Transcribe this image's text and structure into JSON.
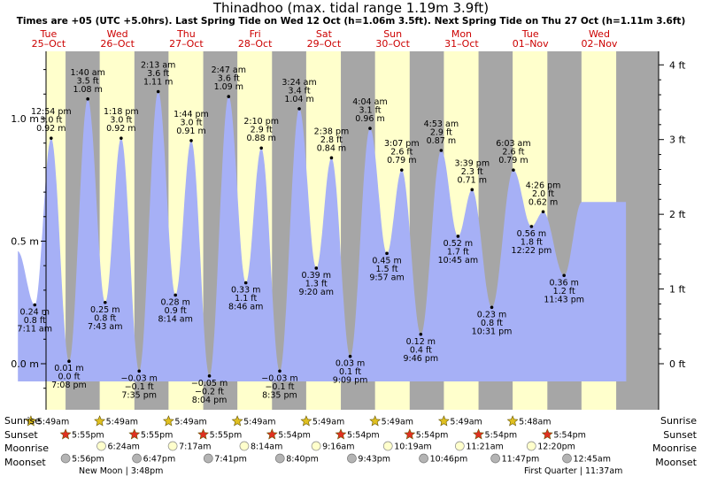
{
  "title": "Thinadhoo (max. tidal range 1.19m 3.9ft)",
  "subtitle": "Times are +05 (UTC +5.0hrs). Last Spring Tide on Wed 12 Oct (h=1.06m 3.5ft). Next Spring Tide on Thu 27 Oct (h=1.11m 3.6ft)",
  "colors": {
    "night": "#a6a6a6",
    "day": "#ffffcc",
    "tide_fill": "#a6b0f6",
    "day_label": "#cc0000",
    "sunrise_star": "#e0c020",
    "sunset_star": "#e03020",
    "moon": "#ffffcc",
    "moonset": "#b4b4b4"
  },
  "row_labels": {
    "sunrise": "Sunrise",
    "sunset": "Sunset",
    "moonrise": "Moonrise",
    "moonset": "Moonset"
  },
  "moon_phases": [
    {
      "label": "New Moon | 3:48pm",
      "day_index": 0
    },
    {
      "label": "First Quarter | 11:37am",
      "day_index": 7
    }
  ],
  "chart_data": {
    "type": "area",
    "title": "Thinadhoo (max. tidal range 1.19m 3.9ft)",
    "start_day_hour": 0,
    "y_left": {
      "label": "m",
      "range": [
        -0.18,
        1.26
      ],
      "ticks": [
        {
          "value": 0.0,
          "label": "0.0 m"
        },
        {
          "value": 0.5,
          "label": "0.5 m"
        },
        {
          "value": 1.0,
          "label": "1.0 m"
        }
      ]
    },
    "y_right": {
      "label": "ft",
      "ticks": [
        {
          "value": 0,
          "label": "0 ft"
        },
        {
          "value": 1,
          "label": "1 ft"
        },
        {
          "value": 2,
          "label": "2 ft"
        },
        {
          "value": 3,
          "label": "3 ft"
        },
        {
          "value": 4,
          "label": "4 ft"
        }
      ]
    },
    "days": [
      {
        "dow": "Tue",
        "date": "25–Oct"
      },
      {
        "dow": "Wed",
        "date": "26–Oct"
      },
      {
        "dow": "Thu",
        "date": "27–Oct"
      },
      {
        "dow": "Fri",
        "date": "28–Oct"
      },
      {
        "dow": "Sat",
        "date": "29–Oct"
      },
      {
        "dow": "Sun",
        "date": "30–Oct"
      },
      {
        "dow": "Mon",
        "date": "31–Oct"
      },
      {
        "dow": "Tue",
        "date": "01–Nov"
      },
      {
        "dow": "Wed",
        "date": "02–Nov"
      }
    ],
    "tides": [
      {
        "t": 7.18,
        "time": "7:11 am",
        "m": "0.24 m",
        "ft": "0.8 ft",
        "h": 0.24,
        "type": "low"
      },
      {
        "t": 12.9,
        "time": "12:54 pm",
        "m": "0.92 m",
        "ft": "3.0 ft",
        "h": 0.92,
        "type": "high"
      },
      {
        "t": 19.13,
        "time": "7:08 pm",
        "m": "0.01 m",
        "ft": "0.0 ft",
        "h": 0.01,
        "type": "low"
      },
      {
        "t": 25.67,
        "time": "1:40 am",
        "m": "1.08 m",
        "ft": "3.5 ft",
        "h": 1.08,
        "type": "high"
      },
      {
        "t": 31.72,
        "time": "7:43 am",
        "m": "0.25 m",
        "ft": "0.8 ft",
        "h": 0.25,
        "type": "low"
      },
      {
        "t": 37.3,
        "time": "1:18 pm",
        "m": "0.92 m",
        "ft": "3.0 ft",
        "h": 0.92,
        "type": "high"
      },
      {
        "t": 43.58,
        "time": "7:35 pm",
        "m": "−0.03 m",
        "ft": "−0.1 ft",
        "h": -0.03,
        "type": "low"
      },
      {
        "t": 50.22,
        "time": "2:13 am",
        "m": "1.11 m",
        "ft": "3.6 ft",
        "h": 1.11,
        "type": "high"
      },
      {
        "t": 56.23,
        "time": "8:14 am",
        "m": "0.28 m",
        "ft": "0.9 ft",
        "h": 0.28,
        "type": "low"
      },
      {
        "t": 61.73,
        "time": "1:44 pm",
        "m": "0.91 m",
        "ft": "3.0 ft",
        "h": 0.91,
        "type": "high"
      },
      {
        "t": 68.07,
        "time": "8:04 pm",
        "m": "−0.05 m",
        "ft": "−0.2 ft",
        "h": -0.05,
        "type": "low"
      },
      {
        "t": 74.78,
        "time": "2:47 am",
        "m": "1.09 m",
        "ft": "3.6 ft",
        "h": 1.09,
        "type": "high"
      },
      {
        "t": 80.77,
        "time": "8:46 am",
        "m": "0.33 m",
        "ft": "1.1 ft",
        "h": 0.33,
        "type": "low"
      },
      {
        "t": 86.17,
        "time": "2:10 pm",
        "m": "0.88 m",
        "ft": "2.9 ft",
        "h": 0.88,
        "type": "high"
      },
      {
        "t": 92.58,
        "time": "8:35 pm",
        "m": "−0.03 m",
        "ft": "−0.1 ft",
        "h": -0.03,
        "type": "low"
      },
      {
        "t": 99.4,
        "time": "3:24 am",
        "m": "1.04 m",
        "ft": "3.4 ft",
        "h": 1.04,
        "type": "high"
      },
      {
        "t": 105.33,
        "time": "9:20 am",
        "m": "0.39 m",
        "ft": "1.3 ft",
        "h": 0.39,
        "type": "low"
      },
      {
        "t": 110.63,
        "time": "2:38 pm",
        "m": "0.84 m",
        "ft": "2.8 ft",
        "h": 0.84,
        "type": "high"
      },
      {
        "t": 117.15,
        "time": "9:09 pm",
        "m": "0.03 m",
        "ft": "0.1 ft",
        "h": 0.03,
        "type": "low"
      },
      {
        "t": 124.07,
        "time": "4:04 am",
        "m": "0.96 m",
        "ft": "3.1 ft",
        "h": 0.96,
        "type": "high"
      },
      {
        "t": 129.95,
        "time": "9:57 am",
        "m": "0.45 m",
        "ft": "1.5 ft",
        "h": 0.45,
        "type": "low"
      },
      {
        "t": 135.12,
        "time": "3:07 pm",
        "m": "0.79 m",
        "ft": "2.6 ft",
        "h": 0.79,
        "type": "high"
      },
      {
        "t": 141.77,
        "time": "9:46 pm",
        "m": "0.12 m",
        "ft": "0.4 ft",
        "h": 0.12,
        "type": "low"
      },
      {
        "t": 148.88,
        "time": "4:53 am",
        "m": "0.87 m",
        "ft": "2.9 ft",
        "h": 0.87,
        "type": "high"
      },
      {
        "t": 154.75,
        "time": "10:45 am",
        "m": "0.52 m",
        "ft": "1.7 ft",
        "h": 0.52,
        "type": "low"
      },
      {
        "t": 159.65,
        "time": "3:39 pm",
        "m": "0.71 m",
        "ft": "2.3 ft",
        "h": 0.71,
        "type": "high"
      },
      {
        "t": 166.52,
        "time": "10:31 pm",
        "m": "0.23 m",
        "ft": "0.8 ft",
        "h": 0.23,
        "type": "low"
      },
      {
        "t": 174.05,
        "time": "6:03 am",
        "m": "0.79 m",
        "ft": "2.6 ft",
        "h": 0.79,
        "type": "high"
      },
      {
        "t": 180.37,
        "time": "12:22 pm",
        "m": "0.56 m",
        "ft": "1.8 ft",
        "h": 0.56,
        "type": "low"
      },
      {
        "t": 184.43,
        "time": "4:26 pm",
        "m": "0.62 m",
        "ft": "2.0 ft",
        "h": 0.62,
        "type": "high"
      },
      {
        "t": 191.72,
        "time": "11:43 pm",
        "m": "0.36 m",
        "ft": "1.2 ft",
        "h": 0.36,
        "type": "low"
      }
    ],
    "sunrise": [
      {
        "t": 5.82,
        "label": "5:49am"
      },
      {
        "t": 29.82,
        "label": "5:49am"
      },
      {
        "t": 53.82,
        "label": "5:49am"
      },
      {
        "t": 77.82,
        "label": "5:49am"
      },
      {
        "t": 101.82,
        "label": "5:49am"
      },
      {
        "t": 125.82,
        "label": "5:49am"
      },
      {
        "t": 149.82,
        "label": "5:49am"
      },
      {
        "t": 173.8,
        "label": "5:48am"
      }
    ],
    "sunset": [
      {
        "t": 17.92,
        "label": "5:55pm"
      },
      {
        "t": 41.92,
        "label": "5:55pm"
      },
      {
        "t": 65.92,
        "label": "5:55pm"
      },
      {
        "t": 89.9,
        "label": "5:54pm"
      },
      {
        "t": 113.9,
        "label": "5:54pm"
      },
      {
        "t": 137.9,
        "label": "5:54pm"
      },
      {
        "t": 161.9,
        "label": "5:54pm"
      },
      {
        "t": 185.9,
        "label": "5:54pm"
      }
    ],
    "moonrise": [
      {
        "t": 30.4,
        "label": "6:24am"
      },
      {
        "t": 55.28,
        "label": "7:17am"
      },
      {
        "t": 80.23,
        "label": "8:14am"
      },
      {
        "t": 105.27,
        "label": "9:16am"
      },
      {
        "t": 130.32,
        "label": "10:19am"
      },
      {
        "t": 155.35,
        "label": "11:21am"
      },
      {
        "t": 180.33,
        "label": "12:20pm"
      }
    ],
    "moonset": [
      {
        "t": 17.93,
        "label": "5:56pm"
      },
      {
        "t": 42.78,
        "label": "6:47pm"
      },
      {
        "t": 67.68,
        "label": "7:41pm"
      },
      {
        "t": 92.67,
        "label": "8:40pm"
      },
      {
        "t": 117.72,
        "label": "9:43pm"
      },
      {
        "t": 142.77,
        "label": "10:46pm"
      },
      {
        "t": 167.78,
        "label": "11:47pm"
      },
      {
        "t": 192.75,
        "label": "12:45am"
      }
    ]
  }
}
